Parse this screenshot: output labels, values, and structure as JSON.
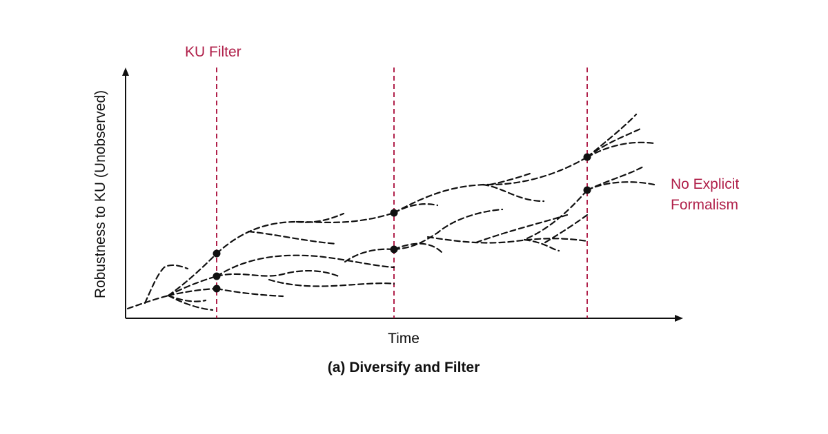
{
  "colors": {
    "accent": "#b0204a",
    "ink": "#111111"
  },
  "figure": {
    "filter_label": "KU Filter",
    "annotation_line1": "No Explicit",
    "annotation_line2": "Formalism",
    "y_axis_label": "Robustness to KU (Unobserved)",
    "x_axis_label": "Time",
    "caption": "(a) Diversify and Filter"
  }
}
